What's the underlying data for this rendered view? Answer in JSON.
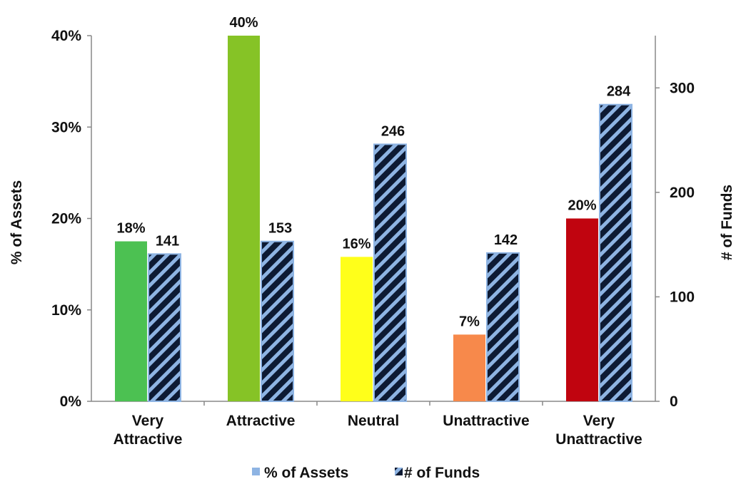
{
  "chart_data": {
    "type": "bar",
    "categories": [
      [
        "Very",
        "Attractive"
      ],
      [
        "Attractive"
      ],
      [
        "Neutral"
      ],
      [
        "Unattractive"
      ],
      [
        "Very",
        "Unattractive"
      ]
    ],
    "series": [
      {
        "name": "% of Assets",
        "axis": "left",
        "values": [
          17.5,
          40,
          15.8,
          7.3,
          20
        ],
        "labels": [
          "18%",
          "40%",
          "16%",
          "7%",
          "20%"
        ],
        "colors": [
          "#4cc152",
          "#86c326",
          "#ffff1a",
          "#f7894b",
          "#c0040f"
        ],
        "legend_color": "#8eb4e3"
      },
      {
        "name": "# of Funds",
        "axis": "right",
        "values": [
          141,
          153,
          246,
          142,
          284
        ],
        "labels": [
          "141",
          "153",
          "246",
          "142",
          "284"
        ],
        "pattern": "diagonal-stripes",
        "colors": [
          "#0d1a33",
          "#8eb4e3"
        ]
      }
    ],
    "y_left": {
      "label": "% of Assets",
      "ylim": [
        0,
        40
      ],
      "ticks": [
        0,
        10,
        20,
        30,
        40
      ],
      "tick_labels": [
        "0%",
        "10%",
        "20%",
        "30%",
        "40%"
      ]
    },
    "y_right": {
      "label": "# of Funds",
      "ylim": [
        0,
        350
      ],
      "ticks": [
        0,
        100,
        200,
        300
      ],
      "tick_labels": [
        "0",
        "100",
        "200",
        "300"
      ]
    },
    "grid": false,
    "legend": {
      "position": "bottom",
      "items": [
        "% of Assets",
        "# of Funds"
      ]
    }
  }
}
